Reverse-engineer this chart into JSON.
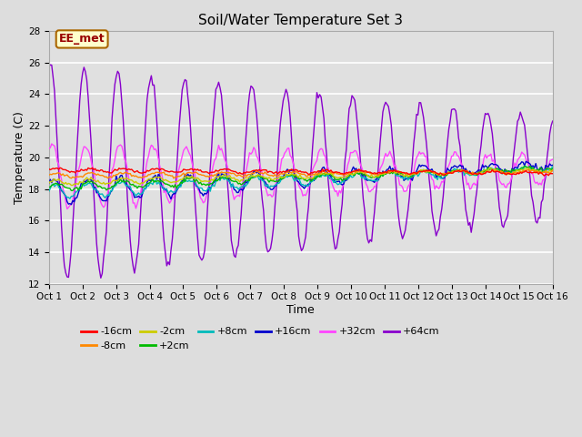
{
  "title": "Soil/Water Temperature Set 3",
  "xlabel": "Time",
  "ylabel": "Temperature (C)",
  "ylim": [
    12,
    28
  ],
  "xlim": [
    0,
    15
  ],
  "yticks": [
    12,
    14,
    16,
    18,
    20,
    22,
    24,
    26,
    28
  ],
  "xtick_labels": [
    "Oct 1",
    "Oct 2",
    "Oct 3",
    "Oct 4",
    "Oct 5",
    "Oct 6",
    "Oct 7",
    "Oct 8",
    "Oct 9",
    "Oct 10",
    "Oct 11",
    "Oct 12",
    "Oct 13",
    "Oct 14",
    "Oct 15",
    "Oct 16"
  ],
  "background_color": "#dddddd",
  "plot_bg_color": "#e0e0e0",
  "grid_color": "#ffffff",
  "annotation_text": "EE_met",
  "annotation_bg": "#ffffcc",
  "annotation_border": "#aa6600",
  "annotation_text_color": "#990000",
  "series": {
    "neg16cm": {
      "label": "-16cm",
      "color": "#ff0000"
    },
    "neg8cm": {
      "label": "-8cm",
      "color": "#ff8800"
    },
    "neg2cm": {
      "label": "-2cm",
      "color": "#cccc00"
    },
    "pos2cm": {
      "label": "+2cm",
      "color": "#00bb00"
    },
    "pos8cm": {
      "label": "+8cm",
      "color": "#00bbbb"
    },
    "pos16cm": {
      "label": "+16cm",
      "color": "#0000cc"
    },
    "pos32cm": {
      "label": "+32cm",
      "color": "#ff44ff"
    },
    "pos64cm": {
      "label": "+64cm",
      "color": "#8800cc"
    }
  },
  "figsize": [
    6.4,
    4.8
  ],
  "dpi": 100
}
